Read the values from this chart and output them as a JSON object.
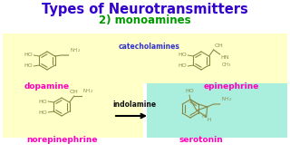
{
  "title": "Types of Neurotransmitters",
  "subtitle": "2) monoamines",
  "title_color": "#3300cc",
  "subtitle_color": "#009900",
  "bg_color": "#ffffff",
  "catecholamines_box_color": "#ffffc8",
  "indolamine_box_color": "#aaeedd",
  "label_color": "#ff00bb",
  "structure_color": "#888844",
  "catecholamines_label": "catecholamines",
  "catecholamines_label_color": "#3333cc",
  "indolamine_label": "indolamine",
  "indolamine_label_color": "#111111",
  "dopamine_label": "dopamine",
  "epinephrine_label": "epinephrine",
  "norepinephrine_label": "norepinephrine",
  "serotonin_label": "serotonin"
}
